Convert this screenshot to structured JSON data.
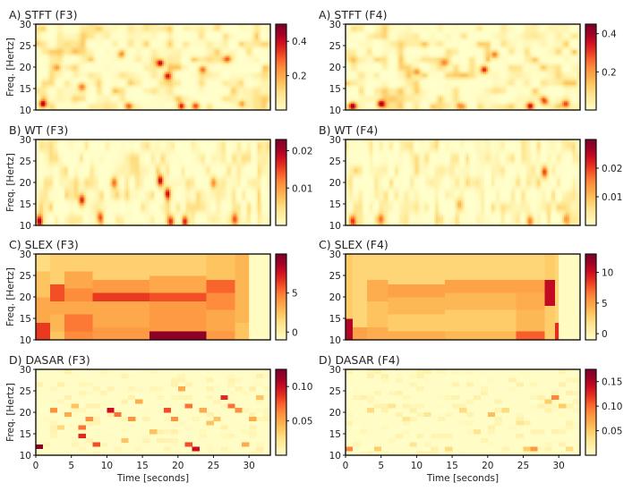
{
  "figure": {
    "ylabel": "Freq. [Hertz]",
    "xlabel": "Time [seconds]",
    "x_ticks": [
      "0",
      "5",
      "10",
      "15",
      "20",
      "25",
      "30"
    ],
    "y_ticks": [
      "10",
      "15",
      "20",
      "25",
      "30"
    ]
  },
  "colors": {
    "colormap": [
      "#ffffcc",
      "#fff0a8",
      "#fee38b",
      "#fec965",
      "#fdab4b",
      "#fd8c3c",
      "#f9602c",
      "#e7301f",
      "#cc0c21",
      "#9e0126",
      "#800026"
    ],
    "frame": "#111111"
  },
  "chart_data": [
    {
      "id": "stft-f3",
      "type": "heatmap",
      "title": "A) STFT (F3)",
      "method": "STFT",
      "channel": "F3",
      "xlim": [
        0,
        33
      ],
      "ylim": [
        10,
        30
      ],
      "vmin": 0,
      "vmax": 0.5,
      "colorbar_ticks": [
        "0.2",
        "0.4"
      ],
      "hotspots": [
        [
          1,
          11.5,
          0.45
        ],
        [
          6.5,
          15.5,
          0.28
        ],
        [
          17.5,
          21,
          0.42
        ],
        [
          18.5,
          18,
          0.35
        ],
        [
          20.5,
          11,
          0.4
        ],
        [
          22.5,
          11,
          0.35
        ],
        [
          23.5,
          19.5,
          0.3
        ],
        [
          12,
          23,
          0.22
        ],
        [
          3,
          20,
          0.22
        ],
        [
          27,
          22,
          0.22
        ],
        [
          13,
          11,
          0.25
        ],
        [
          29,
          11.5,
          0.22
        ]
      ]
    },
    {
      "id": "stft-f4",
      "type": "heatmap",
      "title": "A) STFT (F4)",
      "method": "STFT",
      "channel": "F4",
      "xlim": [
        0,
        33
      ],
      "ylim": [
        10,
        30
      ],
      "vmin": 0,
      "vmax": 0.45,
      "colorbar_ticks": [
        "0.2",
        "0.4"
      ],
      "hotspots": [
        [
          1,
          11,
          0.42
        ],
        [
          5,
          11.5,
          0.4
        ],
        [
          19.5,
          19.5,
          0.35
        ],
        [
          21,
          23,
          0.25
        ],
        [
          26,
          11,
          0.38
        ],
        [
          28,
          12,
          0.25
        ],
        [
          31,
          11.5,
          0.3
        ],
        [
          10,
          19,
          0.2
        ],
        [
          14,
          21,
          0.18
        ],
        [
          16,
          11,
          0.2
        ]
      ]
    },
    {
      "id": "wt-f3",
      "type": "heatmap",
      "title": "B) WT (F3)",
      "method": "WT",
      "channel": "F3",
      "xlim": [
        0,
        33
      ],
      "ylim": [
        10,
        30
      ],
      "vmin": 0,
      "vmax": 0.023,
      "colorbar_ticks": [
        "0.01",
        "0.02"
      ],
      "hotspots": [
        [
          0.5,
          11,
          0.018
        ],
        [
          6.5,
          16,
          0.018
        ],
        [
          9,
          12,
          0.012
        ],
        [
          11,
          20,
          0.014
        ],
        [
          17.5,
          20.5,
          0.02
        ],
        [
          18.5,
          17.5,
          0.016
        ],
        [
          19,
          11,
          0.016
        ],
        [
          21,
          11,
          0.018
        ],
        [
          25,
          20,
          0.012
        ],
        [
          28,
          11.5,
          0.012
        ]
      ]
    },
    {
      "id": "wt-f4",
      "type": "heatmap",
      "title": "B) WT (F4)",
      "method": "WT",
      "channel": "F4",
      "xlim": [
        0,
        33
      ],
      "ylim": [
        10,
        30
      ],
      "vmin": 0,
      "vmax": 0.03,
      "colorbar_ticks": [
        "0.01",
        "0.02"
      ],
      "hotspots": [
        [
          1,
          11,
          0.018
        ],
        [
          5,
          11.5,
          0.018
        ],
        [
          28,
          22.5,
          0.02
        ],
        [
          26,
          11,
          0.016
        ],
        [
          31,
          11.5,
          0.014
        ],
        [
          16,
          15,
          0.01
        ]
      ]
    },
    {
      "id": "slex-f3",
      "type": "heatmap",
      "title": "C) SLEX (F3)",
      "method": "SLEX",
      "channel": "F3",
      "xlim": [
        0,
        33
      ],
      "ylim": [
        10,
        30
      ],
      "vmin": -1,
      "vmax": 10,
      "colorbar_ticks": [
        "0",
        "5"
      ],
      "segments": [
        {
          "t0": 0,
          "t1": 2,
          "bands": [
            [
              10,
              14,
              6.5
            ],
            [
              14,
              20,
              3.5
            ],
            [
              20,
              26,
              2.5
            ],
            [
              26,
              30,
              1.5
            ]
          ]
        },
        {
          "t0": 2,
          "t1": 4,
          "bands": [
            [
              10,
              12,
              2.5
            ],
            [
              12,
              16,
              3.0
            ],
            [
              16,
              19,
              3.5
            ],
            [
              19,
              23,
              6.0
            ],
            [
              23,
              30,
              2.0
            ]
          ]
        },
        {
          "t0": 4,
          "t1": 8,
          "bands": [
            [
              10,
              12,
              4.5
            ],
            [
              12,
              16,
              5.0
            ],
            [
              16,
              19,
              3.5
            ],
            [
              19,
              22,
              4.5
            ],
            [
              22,
              26,
              3.5
            ],
            [
              26,
              30,
              2.0
            ]
          ]
        },
        {
          "t0": 8,
          "t1": 16,
          "bands": [
            [
              10,
              13,
              4.0
            ],
            [
              13,
              17,
              3.5
            ],
            [
              17,
              19,
              3.5
            ],
            [
              19,
              21,
              6.5
            ],
            [
              21,
              24,
              4.0
            ],
            [
              24,
              30,
              2.0
            ]
          ]
        },
        {
          "t0": 16,
          "t1": 24,
          "bands": [
            [
              10,
              12,
              9.5
            ],
            [
              12,
              16,
              4.0
            ],
            [
              16,
              19,
              4.0
            ],
            [
              19,
              21,
              6.0
            ],
            [
              21,
              25,
              3.5
            ],
            [
              25,
              30,
              2.0
            ]
          ]
        },
        {
          "t0": 24,
          "t1": 28,
          "bands": [
            [
              10,
              12,
              4.0
            ],
            [
              12,
              17,
              3.5
            ],
            [
              17,
              21,
              4.5
            ],
            [
              21,
              24,
              5.5
            ],
            [
              24,
              30,
              2.5
            ]
          ]
        },
        {
          "t0": 28,
          "t1": 30,
          "bands": [
            [
              10,
              14,
              2.5
            ],
            [
              14,
              30,
              3.0
            ]
          ]
        }
      ]
    },
    {
      "id": "slex-f4",
      "type": "heatmap",
      "title": "C) SLEX (F4)",
      "method": "SLEX",
      "channel": "F4",
      "xlim": [
        0,
        33
      ],
      "ylim": [
        10,
        30
      ],
      "vmin": -1,
      "vmax": 13,
      "colorbar_ticks": [
        "0",
        "5",
        "10"
      ],
      "segments": [
        {
          "t0": 0,
          "t1": 1,
          "bands": [
            [
              10,
              15,
              11.0
            ],
            [
              15,
              30,
              3.0
            ]
          ]
        },
        {
          "t0": 1,
          "t1": 3,
          "bands": [
            [
              10,
              13,
              5.0
            ],
            [
              13,
              30,
              2.5
            ]
          ]
        },
        {
          "t0": 3,
          "t1": 6,
          "bands": [
            [
              10,
              13,
              4.5
            ],
            [
              13,
              19,
              3.5
            ],
            [
              19,
              24,
              4.5
            ],
            [
              24,
              30,
              2.5
            ]
          ]
        },
        {
          "t0": 6,
          "t1": 14,
          "bands": [
            [
              10,
              12,
              4.5
            ],
            [
              12,
              16,
              3.0
            ],
            [
              16,
              20,
              4.0
            ],
            [
              20,
              23,
              5.0
            ],
            [
              23,
              30,
              2.5
            ]
          ]
        },
        {
          "t0": 14,
          "t1": 24,
          "bands": [
            [
              10,
              12,
              4.0
            ],
            [
              12,
              17,
              3.0
            ],
            [
              17,
              21,
              4.0
            ],
            [
              21,
              24,
              5.0
            ],
            [
              24,
              30,
              2.5
            ]
          ]
        },
        {
          "t0": 24,
          "t1": 28,
          "bands": [
            [
              10,
              12,
              7.5
            ],
            [
              12,
              17,
              4.0
            ],
            [
              17,
              21,
              4.5
            ],
            [
              21,
              24,
              5.0
            ],
            [
              24,
              30,
              2.5
            ]
          ]
        },
        {
          "t0": 28,
          "t1": 29.5,
          "bands": [
            [
              10,
              18,
              3.0
            ],
            [
              18,
              24,
              10.5
            ],
            [
              24,
              30,
              3.0
            ]
          ]
        },
        {
          "t0": 29.5,
          "t1": 30,
          "bands": [
            [
              10,
              14,
              9.0
            ],
            [
              14,
              30,
              2.5
            ]
          ]
        }
      ]
    },
    {
      "id": "dasar-f3",
      "type": "heatmap",
      "title": "D) DASAR (F3)",
      "method": "DASAR",
      "channel": "F3",
      "xlim": [
        0,
        33
      ],
      "ylim": [
        10,
        30
      ],
      "vmin": 0,
      "vmax": 0.125,
      "colorbar_ticks": [
        "0.05",
        "0.10"
      ],
      "cells": [
        [
          0,
          11.5,
          0.12
        ],
        [
          2,
          20,
          0.06
        ],
        [
          4,
          19,
          0.05
        ],
        [
          5,
          21,
          0.04
        ],
        [
          6,
          16,
          0.07
        ],
        [
          6,
          14,
          0.09
        ],
        [
          7,
          18,
          0.06
        ],
        [
          8,
          12,
          0.08
        ],
        [
          10,
          20,
          0.1
        ],
        [
          11,
          19,
          0.07
        ],
        [
          13,
          18,
          0.06
        ],
        [
          14,
          22,
          0.05
        ],
        [
          16,
          15,
          0.04
        ],
        [
          18,
          20,
          0.08
        ],
        [
          19,
          18,
          0.06
        ],
        [
          20,
          25,
          0.05
        ],
        [
          21,
          21,
          0.07
        ],
        [
          21,
          12,
          0.08
        ],
        [
          22,
          11,
          0.1
        ],
        [
          23,
          20,
          0.05
        ],
        [
          24,
          17,
          0.04
        ],
        [
          26,
          23,
          0.09
        ],
        [
          27,
          21,
          0.07
        ],
        [
          28,
          20,
          0.06
        ],
        [
          29,
          12,
          0.05
        ],
        [
          30,
          18,
          0.05
        ],
        [
          31,
          23,
          0.04
        ],
        [
          12,
          13,
          0.04
        ],
        [
          3,
          16,
          0.03
        ],
        [
          25,
          18,
          0.04
        ]
      ]
    },
    {
      "id": "dasar-f4",
      "type": "heatmap",
      "title": "D) DASAR (F4)",
      "method": "DASAR",
      "channel": "F4",
      "xlim": [
        0,
        33
      ],
      "ylim": [
        10,
        30
      ],
      "vmin": 0,
      "vmax": 0.175,
      "colorbar_ticks": [
        "0.05",
        "0.10",
        "0.15"
      ],
      "cells": [
        [
          0,
          11,
          0.09
        ],
        [
          3,
          20,
          0.04
        ],
        [
          4,
          11,
          0.05
        ],
        [
          6,
          21,
          0.03
        ],
        [
          8,
          18,
          0.03
        ],
        [
          11,
          19,
          0.03
        ],
        [
          14,
          11,
          0.04
        ],
        [
          16,
          20,
          0.04
        ],
        [
          18,
          15,
          0.03
        ],
        [
          20,
          19,
          0.06
        ],
        [
          22,
          20,
          0.04
        ],
        [
          25,
          11,
          0.05
        ],
        [
          26,
          11,
          0.08
        ],
        [
          28,
          22,
          0.05
        ],
        [
          29,
          23,
          0.09
        ],
        [
          30,
          21,
          0.05
        ],
        [
          31,
          11,
          0.04
        ],
        [
          9,
          12,
          0.03
        ],
        [
          24,
          17,
          0.03
        ]
      ]
    }
  ]
}
